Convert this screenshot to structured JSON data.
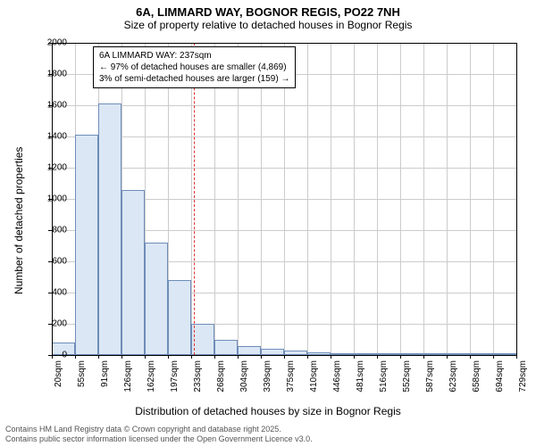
{
  "title": "6A, LIMMARD WAY, BOGNOR REGIS, PO22 7NH",
  "subtitle": "Size of property relative to detached houses in Bognor Regis",
  "chart": {
    "type": "histogram",
    "y_label": "Number of detached properties",
    "x_label": "Distribution of detached houses by size in Bognor Regis",
    "ylim": [
      0,
      2000
    ],
    "ytick_step": 200,
    "y_ticks": [
      0,
      200,
      400,
      600,
      800,
      1000,
      1200,
      1400,
      1600,
      1800,
      2000
    ],
    "x_tick_labels": [
      "20sqm",
      "55sqm",
      "91sqm",
      "126sqm",
      "162sqm",
      "197sqm",
      "233sqm",
      "268sqm",
      "304sqm",
      "339sqm",
      "375sqm",
      "410sqm",
      "446sqm",
      "481sqm",
      "516sqm",
      "552sqm",
      "587sqm",
      "623sqm",
      "658sqm",
      "694sqm",
      "729sqm"
    ],
    "bars": [
      80,
      1410,
      1610,
      1060,
      720,
      480,
      200,
      100,
      55,
      40,
      30,
      20,
      10,
      8,
      5,
      5,
      3,
      3,
      2,
      2
    ],
    "bar_fill": "#dbe7f5",
    "bar_stroke": "#6f8db8",
    "grid_color": "#cccccc",
    "background_color": "#ffffff",
    "ref_line_color": "#e03030",
    "ref_line_x_sqm": 237,
    "annotation": {
      "line1": "6A LIMMARD WAY: 237sqm",
      "line2": "← 97% of detached houses are smaller (4,869)",
      "line3": "3% of semi-detached houses are larger (159) →"
    },
    "title_fontsize": 13,
    "subtitle_fontsize": 12,
    "axis_label_fontsize": 12,
    "tick_fontsize": 10,
    "annotation_fontsize": 10
  },
  "footer": {
    "line1": "Contains HM Land Registry data © Crown copyright and database right 2025.",
    "line2": "Contains public sector information licensed under the Open Government Licence v3.0."
  }
}
